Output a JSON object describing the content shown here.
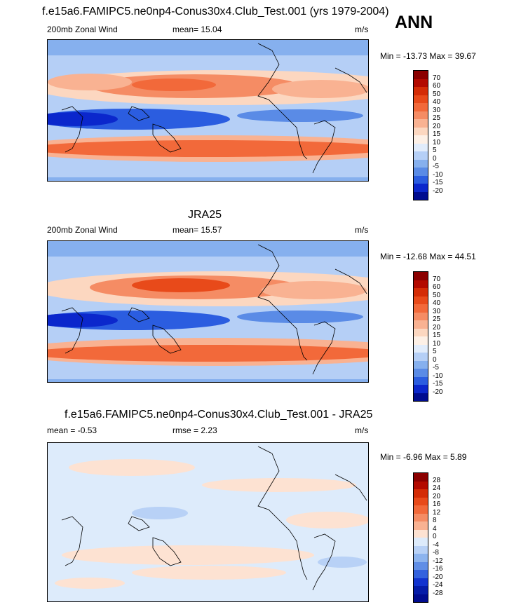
{
  "figure": {
    "main_title": "f.e15a6.FAMIPC5.ne0np4-Conus30x4.Club_Test.001 (yrs 1979-2004)",
    "season": "ANN"
  },
  "panels": [
    {
      "id": "model",
      "title": "",
      "left_label": "200mb Zonal Wind",
      "center_label": "mean=  15.04",
      "right_label": "m/s",
      "minmax": "Min = -13.73 Max =  39.67",
      "colorbar": {
        "levels": [
          "70",
          "60",
          "50",
          "40",
          "30",
          "25",
          "20",
          "15",
          "10",
          "5",
          "0",
          "-5",
          "-10",
          "-15",
          "-20"
        ],
        "colors": [
          "#8b0000",
          "#b30a00",
          "#d42c06",
          "#e84a1a",
          "#f2693a",
          "#f58c64",
          "#f9b292",
          "#fcd7c0",
          "#fdf0e6",
          "#e1ecfb",
          "#b5cff6",
          "#86b0ee",
          "#5a8be6",
          "#2b5de0",
          "#0b27cc",
          "#000c8f"
        ]
      }
    },
    {
      "id": "obs",
      "title": "JRA25",
      "left_label": "200mb Zonal Wind",
      "center_label": "mean=  15.57",
      "right_label": "m/s",
      "minmax": "Min = -12.68 Max =  44.51",
      "colorbar": {
        "levels": [
          "70",
          "60",
          "50",
          "40",
          "30",
          "25",
          "20",
          "15",
          "10",
          "5",
          "0",
          "-5",
          "-10",
          "-15",
          "-20"
        ],
        "colors": [
          "#8b0000",
          "#b30a00",
          "#d42c06",
          "#e84a1a",
          "#f2693a",
          "#f58c64",
          "#f9b292",
          "#fcd7c0",
          "#fdf0e6",
          "#e1ecfb",
          "#b5cff6",
          "#86b0ee",
          "#5a8be6",
          "#2b5de0",
          "#0b27cc",
          "#000c8f"
        ]
      }
    },
    {
      "id": "diff",
      "title": "f.e15a6.FAMIPC5.ne0np4-Conus30x4.Club_Test.001 - JRA25",
      "left_label": "mean =  -0.53",
      "center_label": "rmse =   2.23",
      "right_label": "m/s",
      "minmax": "Min =  -6.96 Max =   5.89",
      "colorbar": {
        "levels": [
          "28",
          "24",
          "20",
          "16",
          "12",
          "8",
          "4",
          "0",
          "-4",
          "-8",
          "-12",
          "-16",
          "-20",
          "-24",
          "-28"
        ],
        "colors": [
          "#8b0000",
          "#b30a00",
          "#d42c06",
          "#e84a1a",
          "#f2693a",
          "#f58c64",
          "#f9b292",
          "#fde2d2",
          "#ddebfb",
          "#b8d1f6",
          "#8db4ee",
          "#608ee6",
          "#3462de",
          "#1233cf",
          "#051ca8",
          "#000c8f"
        ]
      }
    }
  ]
}
